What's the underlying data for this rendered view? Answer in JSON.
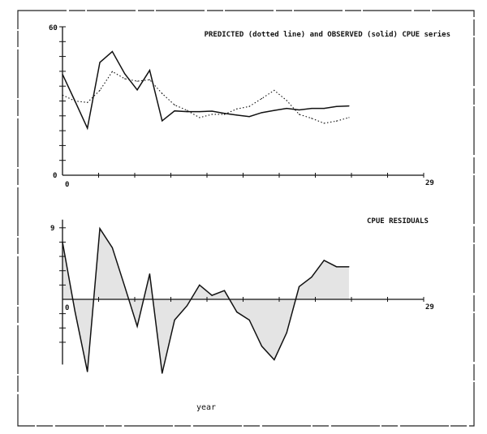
{
  "chart_data": [
    {
      "type": "line",
      "title": "PREDICTED (dotted line) and OBSERVED (solid) CPUE series",
      "xlabel": "",
      "ylabel": "",
      "xlim": [
        0,
        29
      ],
      "ylim": [
        0,
        60
      ],
      "x_tick_labels": [
        "0",
        "29"
      ],
      "y_tick_labels": [
        "0",
        "60"
      ],
      "grid": false,
      "x": [
        0,
        1,
        2,
        3,
        4,
        5,
        6,
        7,
        8,
        9,
        10,
        11,
        12,
        13,
        14,
        15,
        16,
        17,
        18,
        19,
        20,
        21,
        22,
        23
      ],
      "series": [
        {
          "style": "solid",
          "values": [
            40.8,
            30,
            19,
            45.6,
            50,
            41,
            34.5,
            42.4,
            22,
            26,
            25.7,
            25.7,
            25.9,
            25,
            24.3,
            23.7,
            25.3,
            26.2,
            27,
            26.4,
            27,
            27,
            27.8,
            28
          ]
        },
        {
          "style": "dotted",
          "values": [
            32.4,
            30,
            29.4,
            34.3,
            41.9,
            39,
            38,
            38.6,
            33,
            28.4,
            26.2,
            23.3,
            24.6,
            24.6,
            26.8,
            27.8,
            31,
            34.3,
            30.2,
            24.6,
            23,
            21,
            21.9,
            23.3
          ]
        }
      ],
      "color": "#111111"
    },
    {
      "type": "area",
      "title": "CPUE RESIDUALS",
      "xlabel": "year",
      "ylabel": "",
      "xlim": [
        0,
        29
      ],
      "ylim": [
        -9,
        9
      ],
      "x_tick_labels": [
        "0",
        "29"
      ],
      "y_tick_labels": [
        "9"
      ],
      "grid": false,
      "x": [
        0,
        1,
        2,
        3,
        4,
        5,
        6,
        7,
        8,
        9,
        10,
        11,
        12,
        13,
        14,
        15,
        16,
        17,
        18,
        19,
        20,
        21,
        22,
        23
      ],
      "values": [
        7.2,
        -1.5,
        -9.1,
        8.9,
        6.5,
        1.6,
        -3.4,
        3.2,
        -9.3,
        -2.6,
        -0.8,
        1.8,
        0.5,
        1.1,
        -1.6,
        -2.6,
        -5.9,
        -7.6,
        -4.2,
        1.6,
        2.8,
        4.9,
        4.1,
        4.1
      ],
      "color": "#111111",
      "fill_color": "#e4e4e4"
    }
  ]
}
